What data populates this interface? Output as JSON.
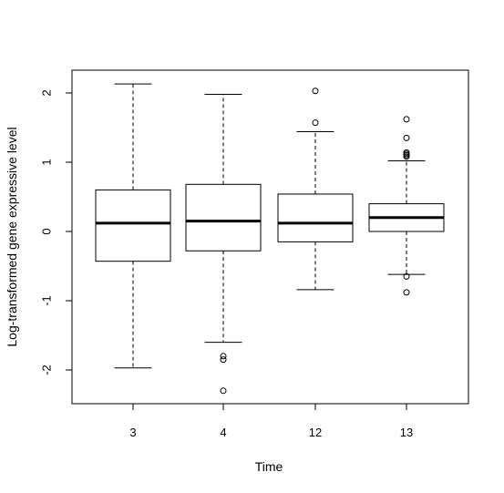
{
  "chart_data": {
    "type": "boxplot",
    "title": "",
    "xlabel": "Time",
    "ylabel": "Log-transformed gene expressive level",
    "ylim": [
      -2.5,
      2.3
    ],
    "yticks": [
      -2,
      -1,
      0,
      1,
      2
    ],
    "ytick_labels": [
      "-2",
      "-1",
      "0",
      "1",
      "2"
    ],
    "grid": false,
    "legend": "none",
    "categories": [
      "3",
      "4",
      "12",
      "13"
    ],
    "boxes": [
      {
        "category": "3",
        "whisker_low": -1.97,
        "q1": -0.43,
        "median": 0.12,
        "q3": 0.6,
        "whisker_high": 2.13,
        "outliers": []
      },
      {
        "category": "4",
        "whisker_low": -1.6,
        "q1": -0.28,
        "median": 0.15,
        "q3": 0.68,
        "whisker_high": 1.98,
        "outliers": [
          -1.8,
          -1.85,
          -2.3
        ]
      },
      {
        "category": "12",
        "whisker_low": -0.84,
        "q1": -0.15,
        "median": 0.12,
        "q3": 0.54,
        "whisker_high": 1.44,
        "outliers": [
          2.03,
          1.57
        ]
      },
      {
        "category": "13",
        "whisker_low": -0.62,
        "q1": 0.0,
        "median": 0.2,
        "q3": 0.4,
        "whisker_high": 1.02,
        "outliers": [
          1.62,
          1.35,
          1.14,
          1.12,
          1.1,
          1.08,
          -0.65,
          -0.88
        ]
      }
    ],
    "colors": {
      "stroke": "#000000",
      "box_fill": "#ffffff"
    }
  }
}
